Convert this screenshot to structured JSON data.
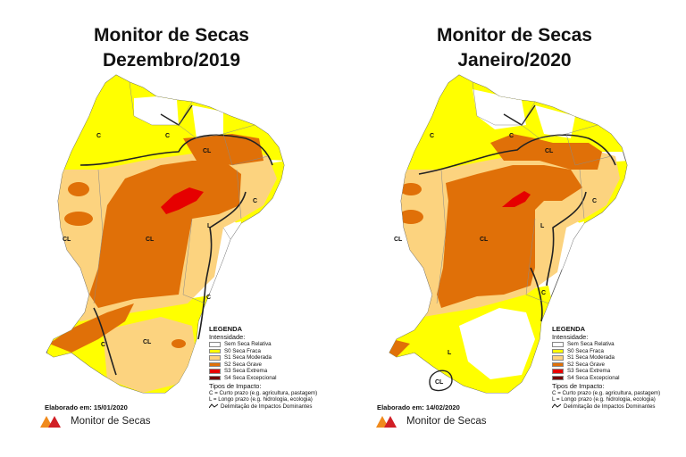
{
  "panels": [
    {
      "title_line1": "Monitor de Secas",
      "title_line2": "Dezembro/2019",
      "elaborado": "Elaborado em: 15/01/2020"
    },
    {
      "title_line1": "Monitor de Secas",
      "title_line2": "Janeiro/2020",
      "elaborado": "Elaborado em: 14/02/2020"
    }
  ],
  "legend": {
    "title": "LEGENDA",
    "intensity_label": "Intensidade:",
    "items": [
      {
        "label": "Sem Seca Relativa",
        "color": "#ffffff"
      },
      {
        "label": "S0 Seca Fraca",
        "color": "#ffff00"
      },
      {
        "label": "S1 Seca Moderada",
        "color": "#fcd37f"
      },
      {
        "label": "S2 Seca Grave",
        "color": "#e07008"
      },
      {
        "label": "S3 Seca Extrema",
        "color": "#e60000"
      },
      {
        "label": "S4 Seca Excepcional",
        "color": "#730000"
      }
    ],
    "impact_title": "Tipos de Impacto:",
    "impact_c": "C = Curto prazo (e.g. agricultura, pastagem)",
    "impact_l": "L = Longo prazo (e.g. hidrologia, ecologia)",
    "delimitation": "Delimitação de Impactos Dominantes"
  },
  "logo_text": "Monitor de Secas",
  "map_labels": {
    "c": "C",
    "cl": "CL",
    "l": "L"
  },
  "colors": {
    "s0": "#ffff00",
    "s1": "#fcd37f",
    "s2": "#e07008",
    "s3": "#e60000",
    "logo_orange": "#f08a1c",
    "logo_red": "#d11f26"
  }
}
